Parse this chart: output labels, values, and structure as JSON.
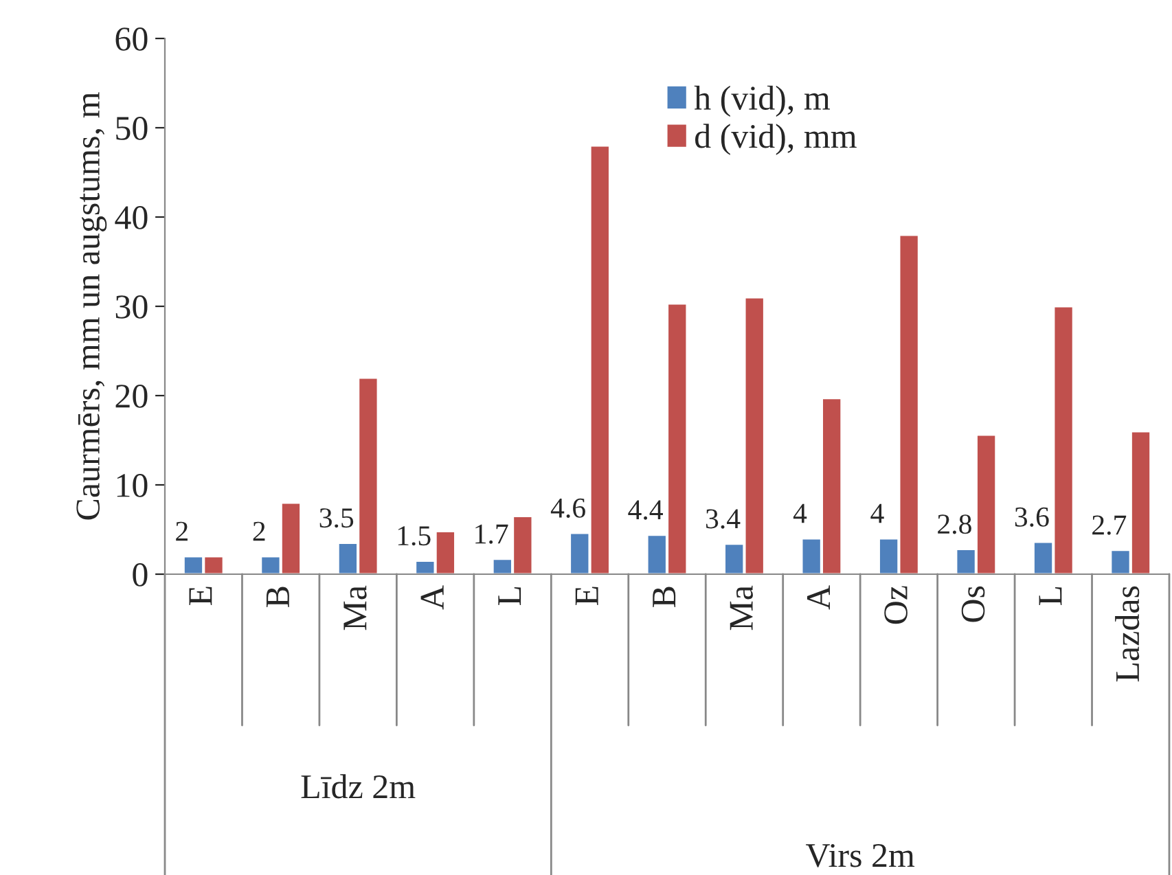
{
  "chart_data": {
    "type": "bar",
    "ylabel": "Caurmērs, mm un augstums, m",
    "categories": [
      "E",
      "B",
      "Ma",
      "A",
      "L",
      "E",
      "B",
      "Ma",
      "A",
      "Oz",
      "Os",
      "L",
      "Lazdas"
    ],
    "series": [
      {
        "name": "h (vid), m",
        "color": "#4f81bd",
        "values": [
          2,
          2,
          3.5,
          1.5,
          1.7,
          4.6,
          4.4,
          3.4,
          4,
          4,
          2.8,
          3.6,
          2.7
        ],
        "value_labels": [
          "2",
          "2",
          "3.5",
          "1.5",
          "1.7",
          "4.6",
          "4.4",
          "3.4",
          "4",
          "4",
          "2.8",
          "3.6",
          "2.7"
        ]
      },
      {
        "name": "d (vid), mm",
        "color": "#c0504d",
        "values": [
          2,
          8,
          22,
          4.8,
          6.5,
          48,
          30.3,
          31,
          19.7,
          38,
          15.6,
          30,
          16
        ]
      }
    ],
    "annotations": [
      "Līdz 2m",
      "Virs 2m"
    ],
    "ylim": [
      0,
      60
    ],
    "yticks": [
      0,
      10,
      20,
      30,
      40,
      50,
      60
    ],
    "legend": "top right",
    "grid": false
  }
}
